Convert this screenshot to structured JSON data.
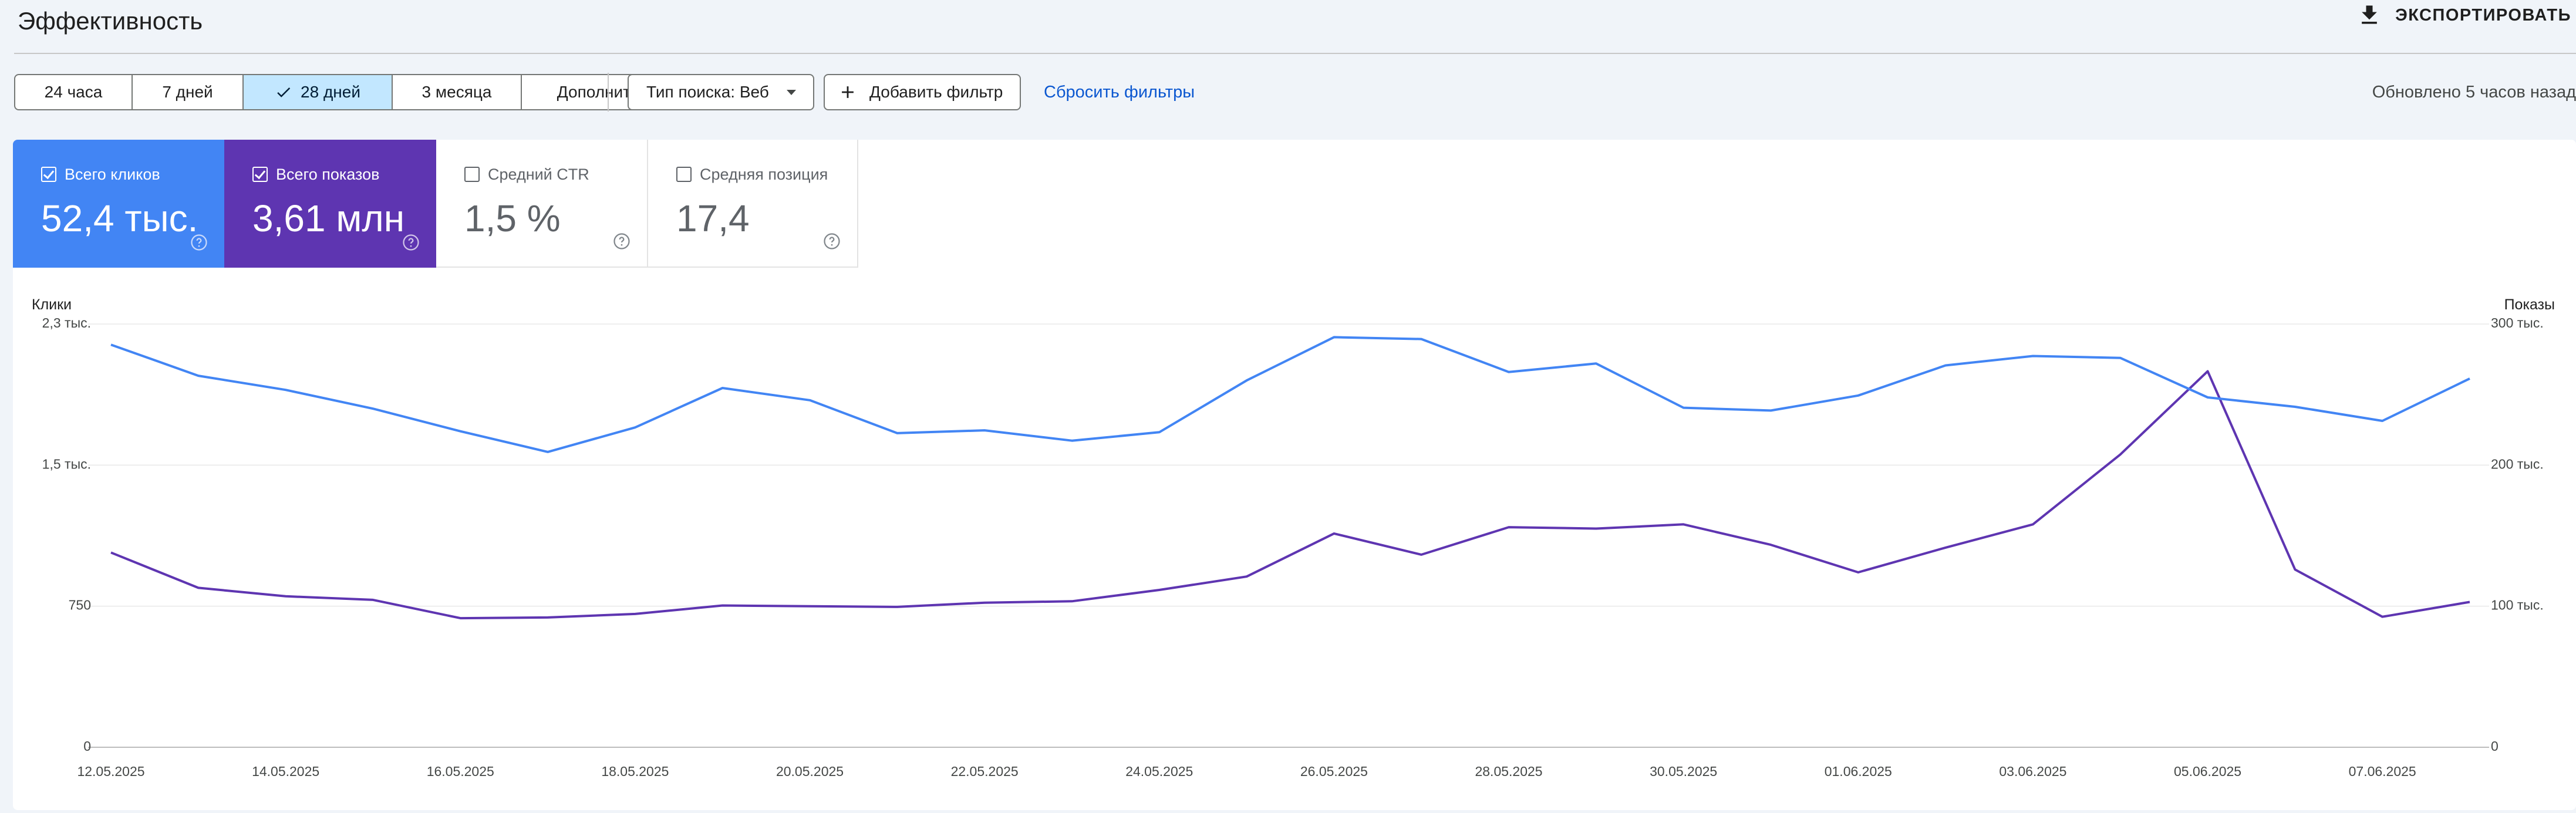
{
  "header": {
    "title": "Эффективность",
    "export_label": "ЭКСПОРТИРОВАТЬ"
  },
  "filters": {
    "date_ranges": [
      "24 часа",
      "7 дней",
      "28 дней",
      "3 месяца"
    ],
    "selected_range": "28 дней",
    "more_label": "Дополнительно",
    "search_type_label": "Тип поиска: Веб",
    "add_filter_label": "Добавить фильтр",
    "reset_label": "Сбросить фильтры",
    "updated_text": "Обновлено 5 часов назад"
  },
  "metrics": [
    {
      "label": "Всего кликов",
      "value": "52,4 тыс.",
      "checked": true,
      "color": "#4285f4"
    },
    {
      "label": "Всего показов",
      "value": "3,61 млн",
      "checked": true,
      "color": "#5e35b1"
    },
    {
      "label": "Средний CTR",
      "value": "1,5 %",
      "checked": false
    },
    {
      "label": "Средняя позиция",
      "value": "17,4",
      "checked": false
    }
  ],
  "chart_data": {
    "type": "line",
    "left_axis": {
      "title": "Клики",
      "ticks": [
        "0",
        "750",
        "1,5 тыс.",
        "2,3 тыс."
      ],
      "range": [
        0,
        2250
      ]
    },
    "right_axis": {
      "title": "Показы",
      "ticks": [
        "0",
        "100 тыс.",
        "200 тыс.",
        "300 тыс."
      ],
      "range": [
        0,
        300000
      ]
    },
    "x_labels": [
      "12.05.2025",
      "14.05.2025",
      "16.05.2025",
      "18.05.2025",
      "20.05.2025",
      "22.05.2025",
      "24.05.2025",
      "26.05.2025",
      "28.05.2025",
      "30.05.2025",
      "01.06.2025",
      "03.06.2025",
      "05.06.2025",
      "07.06.2025"
    ],
    "dates": [
      "12.05.2025",
      "13.05.2025",
      "14.05.2025",
      "15.05.2025",
      "16.05.2025",
      "17.05.2025",
      "18.05.2025",
      "19.05.2025",
      "20.05.2025",
      "21.05.2025",
      "22.05.2025",
      "23.05.2025",
      "24.05.2025",
      "25.05.2025",
      "26.05.2025",
      "27.05.2025",
      "28.05.2025",
      "29.05.2025",
      "30.05.2025",
      "31.05.2025",
      "01.06.2025",
      "02.06.2025",
      "03.06.2025",
      "04.06.2025",
      "05.06.2025",
      "06.06.2025",
      "07.06.2025",
      "08.06.2025"
    ],
    "series": [
      {
        "name": "Клики",
        "axis": "left",
        "color": "#4285f4",
        "values": [
          2140,
          1975,
          1900,
          1800,
          1680,
          1570,
          1700,
          1910,
          1845,
          1670,
          1685,
          1630,
          1675,
          1950,
          2180,
          2170,
          1995,
          2040,
          1805,
          1790,
          1870,
          2030,
          2080,
          2070,
          1860,
          1810,
          1735,
          1960
        ]
      },
      {
        "name": "Показы",
        "axis": "right",
        "color": "#5e35b1",
        "values": [
          138000,
          113000,
          107000,
          104500,
          91500,
          92000,
          94500,
          100500,
          100000,
          99500,
          102500,
          103500,
          111500,
          121000,
          151500,
          136500,
          156000,
          155000,
          158000,
          143500,
          124000,
          141500,
          158000,
          207500,
          266500,
          126000,
          92500,
          103000
        ]
      }
    ]
  }
}
